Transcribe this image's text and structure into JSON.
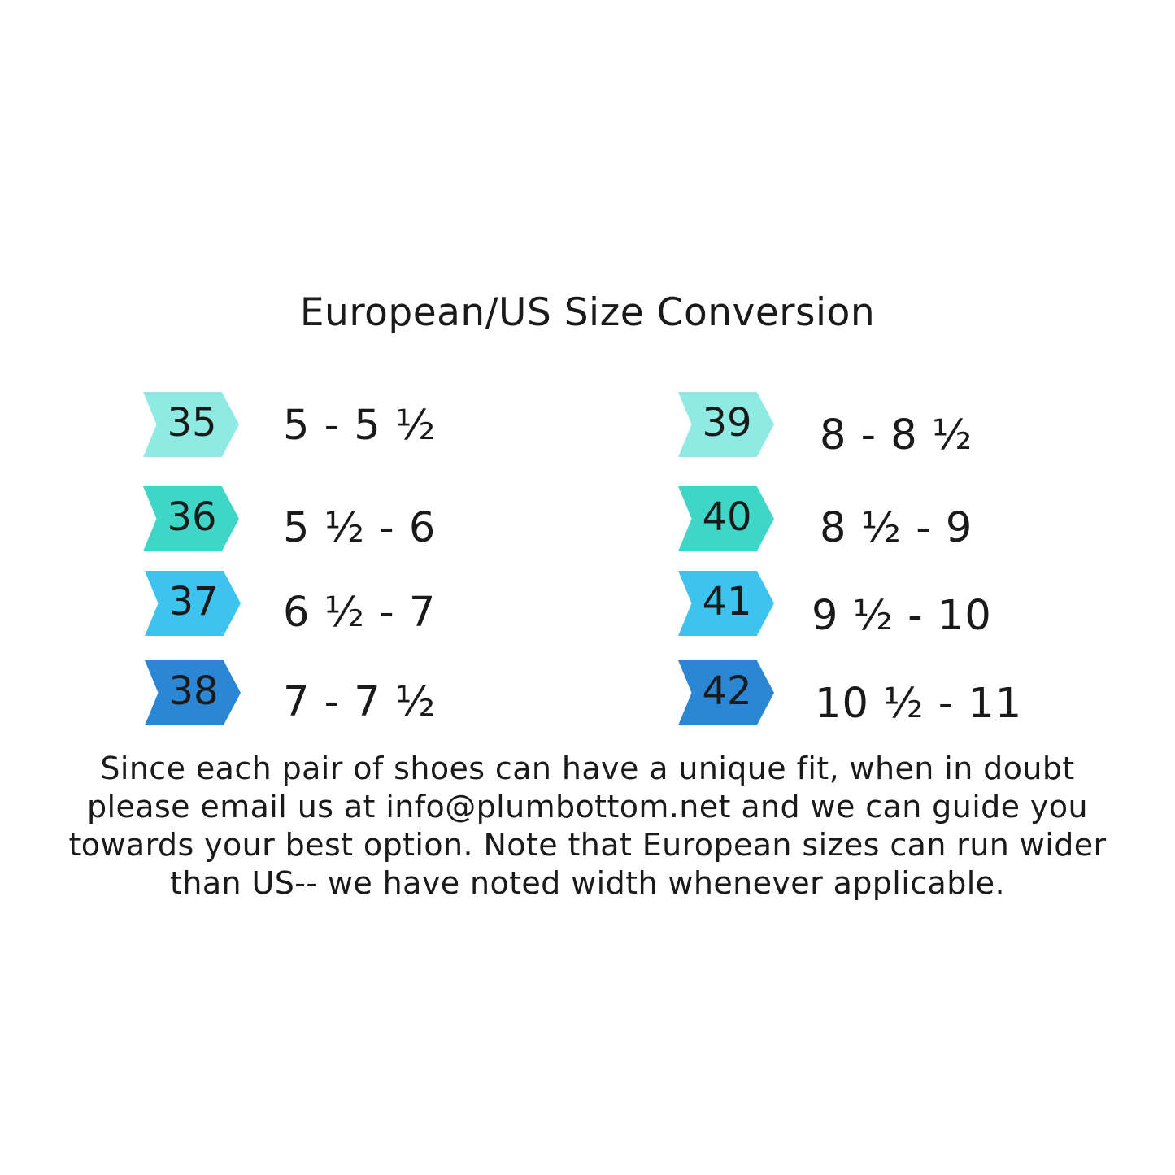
{
  "title": "European/US Size Conversion",
  "colors": {
    "tier1": "#8eeae2",
    "tier2": "#3fd6c8",
    "tier3": "#3ec3ee",
    "tier4": "#2b86d3",
    "text": "#1a1a1a"
  },
  "conversions": [
    {
      "eu": "35",
      "us": "5 - 5 ½"
    },
    {
      "eu": "36",
      "us": "5 ½ - 6"
    },
    {
      "eu": "37",
      "us": "6 ½ - 7"
    },
    {
      "eu": "38",
      "us": "7 - 7 ½"
    },
    {
      "eu": "39",
      "us": "8 - 8 ½"
    },
    {
      "eu": "40",
      "us": "8 ½ - 9"
    },
    {
      "eu": "41",
      "us": "9 ½ - 10"
    },
    {
      "eu": "42",
      "us": "10 ½ - 11"
    }
  ],
  "note": "Since each pair of shoes can  have a unique fit, when in doubt please email us at info@plumbottom.net and we can guide you towards your best option. Note that European sizes can run wider than US-- we have noted width whenever applicable."
}
